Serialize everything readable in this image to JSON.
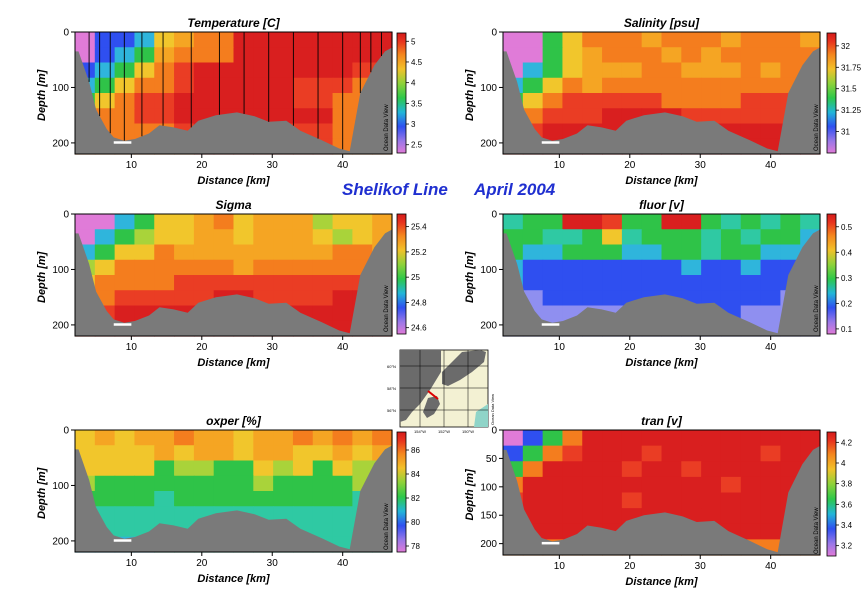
{
  "figure": {
    "title_line": "Shelikof Line",
    "title_date": "April 2004",
    "watermark": "Ocean Data View",
    "xlabel": "Distance [km]",
    "ylabel": "Depth [m]"
  },
  "map": {
    "lat_labels": [
      "60°N",
      "58°N",
      "56°N"
    ],
    "lon_labels": [
      "154°W",
      "152°W",
      "150°W"
    ],
    "transect_color": "#dd0000",
    "land_color": "#6b6b6b",
    "ocean_color": "#f3f1d3"
  },
  "chart_data": [
    {
      "type": "heatmap",
      "title": "Temperature [C]",
      "xlabel": "Distance [km]",
      "ylabel": "Depth [m]",
      "xlim": [
        2,
        47
      ],
      "ylim": [
        220,
        0
      ],
      "x_ticks": [
        "10",
        "20",
        "30",
        "40"
      ],
      "y_ticks": [
        "0",
        "100",
        "200"
      ],
      "colorbar_ticks": [
        "5",
        "4.5",
        "4",
        "3.5",
        "3",
        "2.5"
      ],
      "colorbar_range": [
        2.3,
        5.2
      ],
      "station_lines": true,
      "stations_km": [
        4,
        5.5,
        7,
        9,
        11.5,
        14.5,
        18.5,
        22.5,
        26,
        29.5,
        33,
        36.5,
        40,
        42.5,
        44,
        45.5
      ],
      "bottom_profile": {
        "x": [
          2.5,
          4,
          5,
          6.5,
          7.5,
          9,
          10.5,
          12.5,
          14,
          16,
          18,
          19.5,
          22,
          25,
          27.5,
          29.5,
          32,
          34,
          37,
          39.5,
          41,
          42.5,
          44.5,
          46,
          47
        ],
        "depth": [
          35,
          90,
          140,
          175,
          190,
          196,
          193,
          183,
          168,
          172,
          178,
          160,
          150,
          145,
          152,
          162,
          160,
          178,
          195,
          210,
          215,
          110,
          60,
          35,
          28
        ]
      }
    },
    {
      "type": "heatmap",
      "title": "Salinity [psu]",
      "xlabel": "Distance [km]",
      "ylabel": "Depth [m]",
      "xlim": [
        2,
        47
      ],
      "ylim": [
        220,
        0
      ],
      "x_ticks": [
        "10",
        "20",
        "30",
        "40"
      ],
      "y_ticks": [
        "0",
        "100",
        "200"
      ],
      "colorbar_ticks": [
        "32",
        "31.75",
        "31.5",
        "31.25",
        "31"
      ],
      "colorbar_range": [
        30.75,
        32.15
      ],
      "station_lines": false
    },
    {
      "type": "heatmap",
      "title": "Sigma",
      "xlabel": "Distance [km]",
      "ylabel": "Depth [m]",
      "xlim": [
        2,
        47
      ],
      "ylim": [
        220,
        0
      ],
      "x_ticks": [
        "10",
        "20",
        "30",
        "40"
      ],
      "y_ticks": [
        "0",
        "100",
        "200"
      ],
      "colorbar_ticks": [
        "25.4",
        "25.2",
        "25",
        "24.8",
        "24.6"
      ],
      "colorbar_range": [
        24.55,
        25.5
      ],
      "station_lines": false
    },
    {
      "type": "heatmap",
      "title": "fluor [v]",
      "xlabel": "Distance [km]",
      "ylabel": "Depth [m]",
      "xlim": [
        2,
        47
      ],
      "ylim": [
        220,
        0
      ],
      "x_ticks": [
        "10",
        "20",
        "30",
        "40"
      ],
      "y_ticks": [
        "0",
        "100",
        "200"
      ],
      "colorbar_ticks": [
        "0.5",
        "0.4",
        "0.3",
        "0.2",
        "0.1"
      ],
      "colorbar_range": [
        0.08,
        0.55
      ],
      "station_lines": false
    },
    {
      "type": "heatmap",
      "title": "oxper [%]",
      "xlabel": "Distance [km]",
      "ylabel": "Depth [m]",
      "xlim": [
        2,
        47
      ],
      "ylim": [
        220,
        0
      ],
      "x_ticks": [
        "10",
        "20",
        "30",
        "40"
      ],
      "y_ticks": [
        "0",
        "100",
        "200"
      ],
      "colorbar_ticks": [
        "86",
        "84",
        "82",
        "80",
        "78"
      ],
      "colorbar_range": [
        77.5,
        87.5
      ],
      "station_lines": false
    },
    {
      "type": "heatmap",
      "title": "tran [v]",
      "xlabel": "Distance [km]",
      "ylabel": "Depth [m]",
      "xlim": [
        2,
        47
      ],
      "ylim": [
        220,
        0
      ],
      "x_ticks": [
        "10",
        "20",
        "30",
        "40"
      ],
      "y_ticks": [
        "0",
        "50",
        "100",
        "150",
        "200"
      ],
      "colorbar_ticks": [
        "4.2",
        "4",
        "3.8",
        "3.6",
        "3.4",
        "3.2"
      ],
      "colorbar_range": [
        3.1,
        4.3
      ],
      "station_lines": false
    }
  ]
}
